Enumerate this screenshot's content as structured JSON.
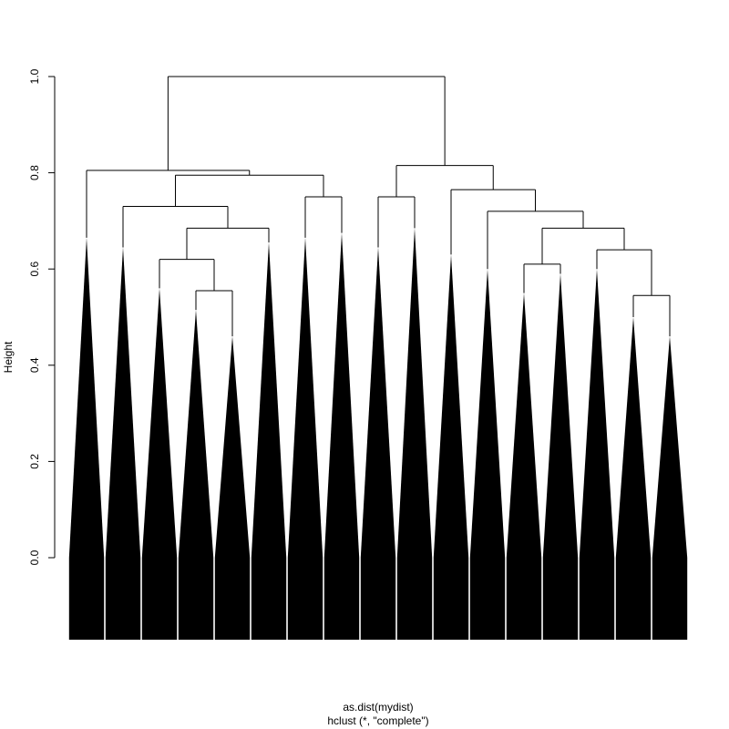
{
  "chart_data": {
    "type": "dendrogram",
    "title": "as.dist(mydist)",
    "subtitle": "hclust (*, \"complete\")",
    "y_label": "Height",
    "ylim": [
      0,
      1
    ],
    "yticks": [
      {
        "value": 0,
        "label": "0.0"
      },
      0.2,
      0.4,
      0.6,
      0.8,
      {
        "value": 1,
        "label": "1.0"
      }
    ],
    "color": "#000000",
    "tree": {
      "height": 1.0,
      "children": [
        {
          "height": 0.805,
          "children": [
            0.665,
            {
              "height": 0.795,
              "children": [
                {
                  "height": 0.73,
                  "children": [
                    0.645,
                    {
                      "height": 0.685,
                      "children": [
                        {
                          "height": 0.62,
                          "children": [
                            0.56,
                            {
                              "height": 0.555,
                              "children": [
                                0.515,
                                0.46
                              ]
                            }
                          ]
                        },
                        0.655
                      ]
                    }
                  ]
                },
                {
                  "height": 0.75,
                  "children": [
                    0.665,
                    0.675
                  ]
                }
              ]
            }
          ]
        },
        {
          "height": 0.815,
          "children": [
            {
              "height": 0.75,
              "children": [
                0.645,
                0.685
              ]
            },
            {
              "height": 0.765,
              "children": [
                0.63,
                {
                  "height": 0.72,
                  "children": [
                    0.6,
                    {
                      "height": 0.685,
                      "children": [
                        {
                          "height": 0.61,
                          "children": [
                            0.55,
                            0.59
                          ]
                        },
                        {
                          "height": 0.64,
                          "children": [
                            0.6,
                            {
                              "height": 0.545,
                              "children": [
                                0.5,
                                0.46
                              ]
                            }
                          ]
                        }
                      ]
                    }
                  ]
                }
              ]
            }
          ]
        }
      ]
    }
  }
}
